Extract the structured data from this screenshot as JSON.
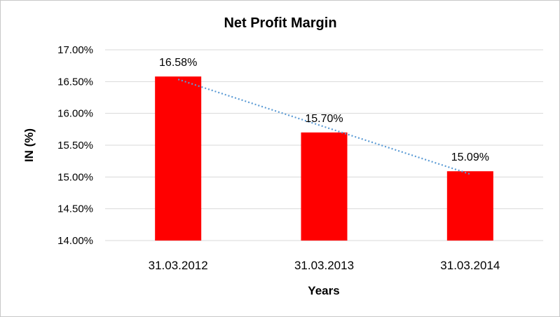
{
  "chart_data": {
    "type": "bar",
    "title": "Net Profit Margin",
    "xlabel": "Years",
    "ylabel": "IN (%)",
    "categories": [
      "31.03.2012",
      "31.03.2013",
      "31.03.2014"
    ],
    "values": [
      16.58,
      15.7,
      15.09
    ],
    "data_labels": [
      "16.58%",
      "15.70%",
      "15.09%"
    ],
    "ylim": [
      14.0,
      17.0
    ],
    "yticks": [
      14.0,
      14.5,
      15.0,
      15.5,
      16.0,
      16.5,
      17.0
    ],
    "ytick_labels": [
      "14.00%",
      "14.50%",
      "15.00%",
      "15.50%",
      "16.00%",
      "16.50%",
      "17.00%"
    ],
    "bar_color": "#ff0000",
    "trendline": {
      "type": "linear",
      "style": "dotted",
      "color": "#5b9bd5"
    },
    "grid": "horizontal",
    "legend": "none"
  }
}
